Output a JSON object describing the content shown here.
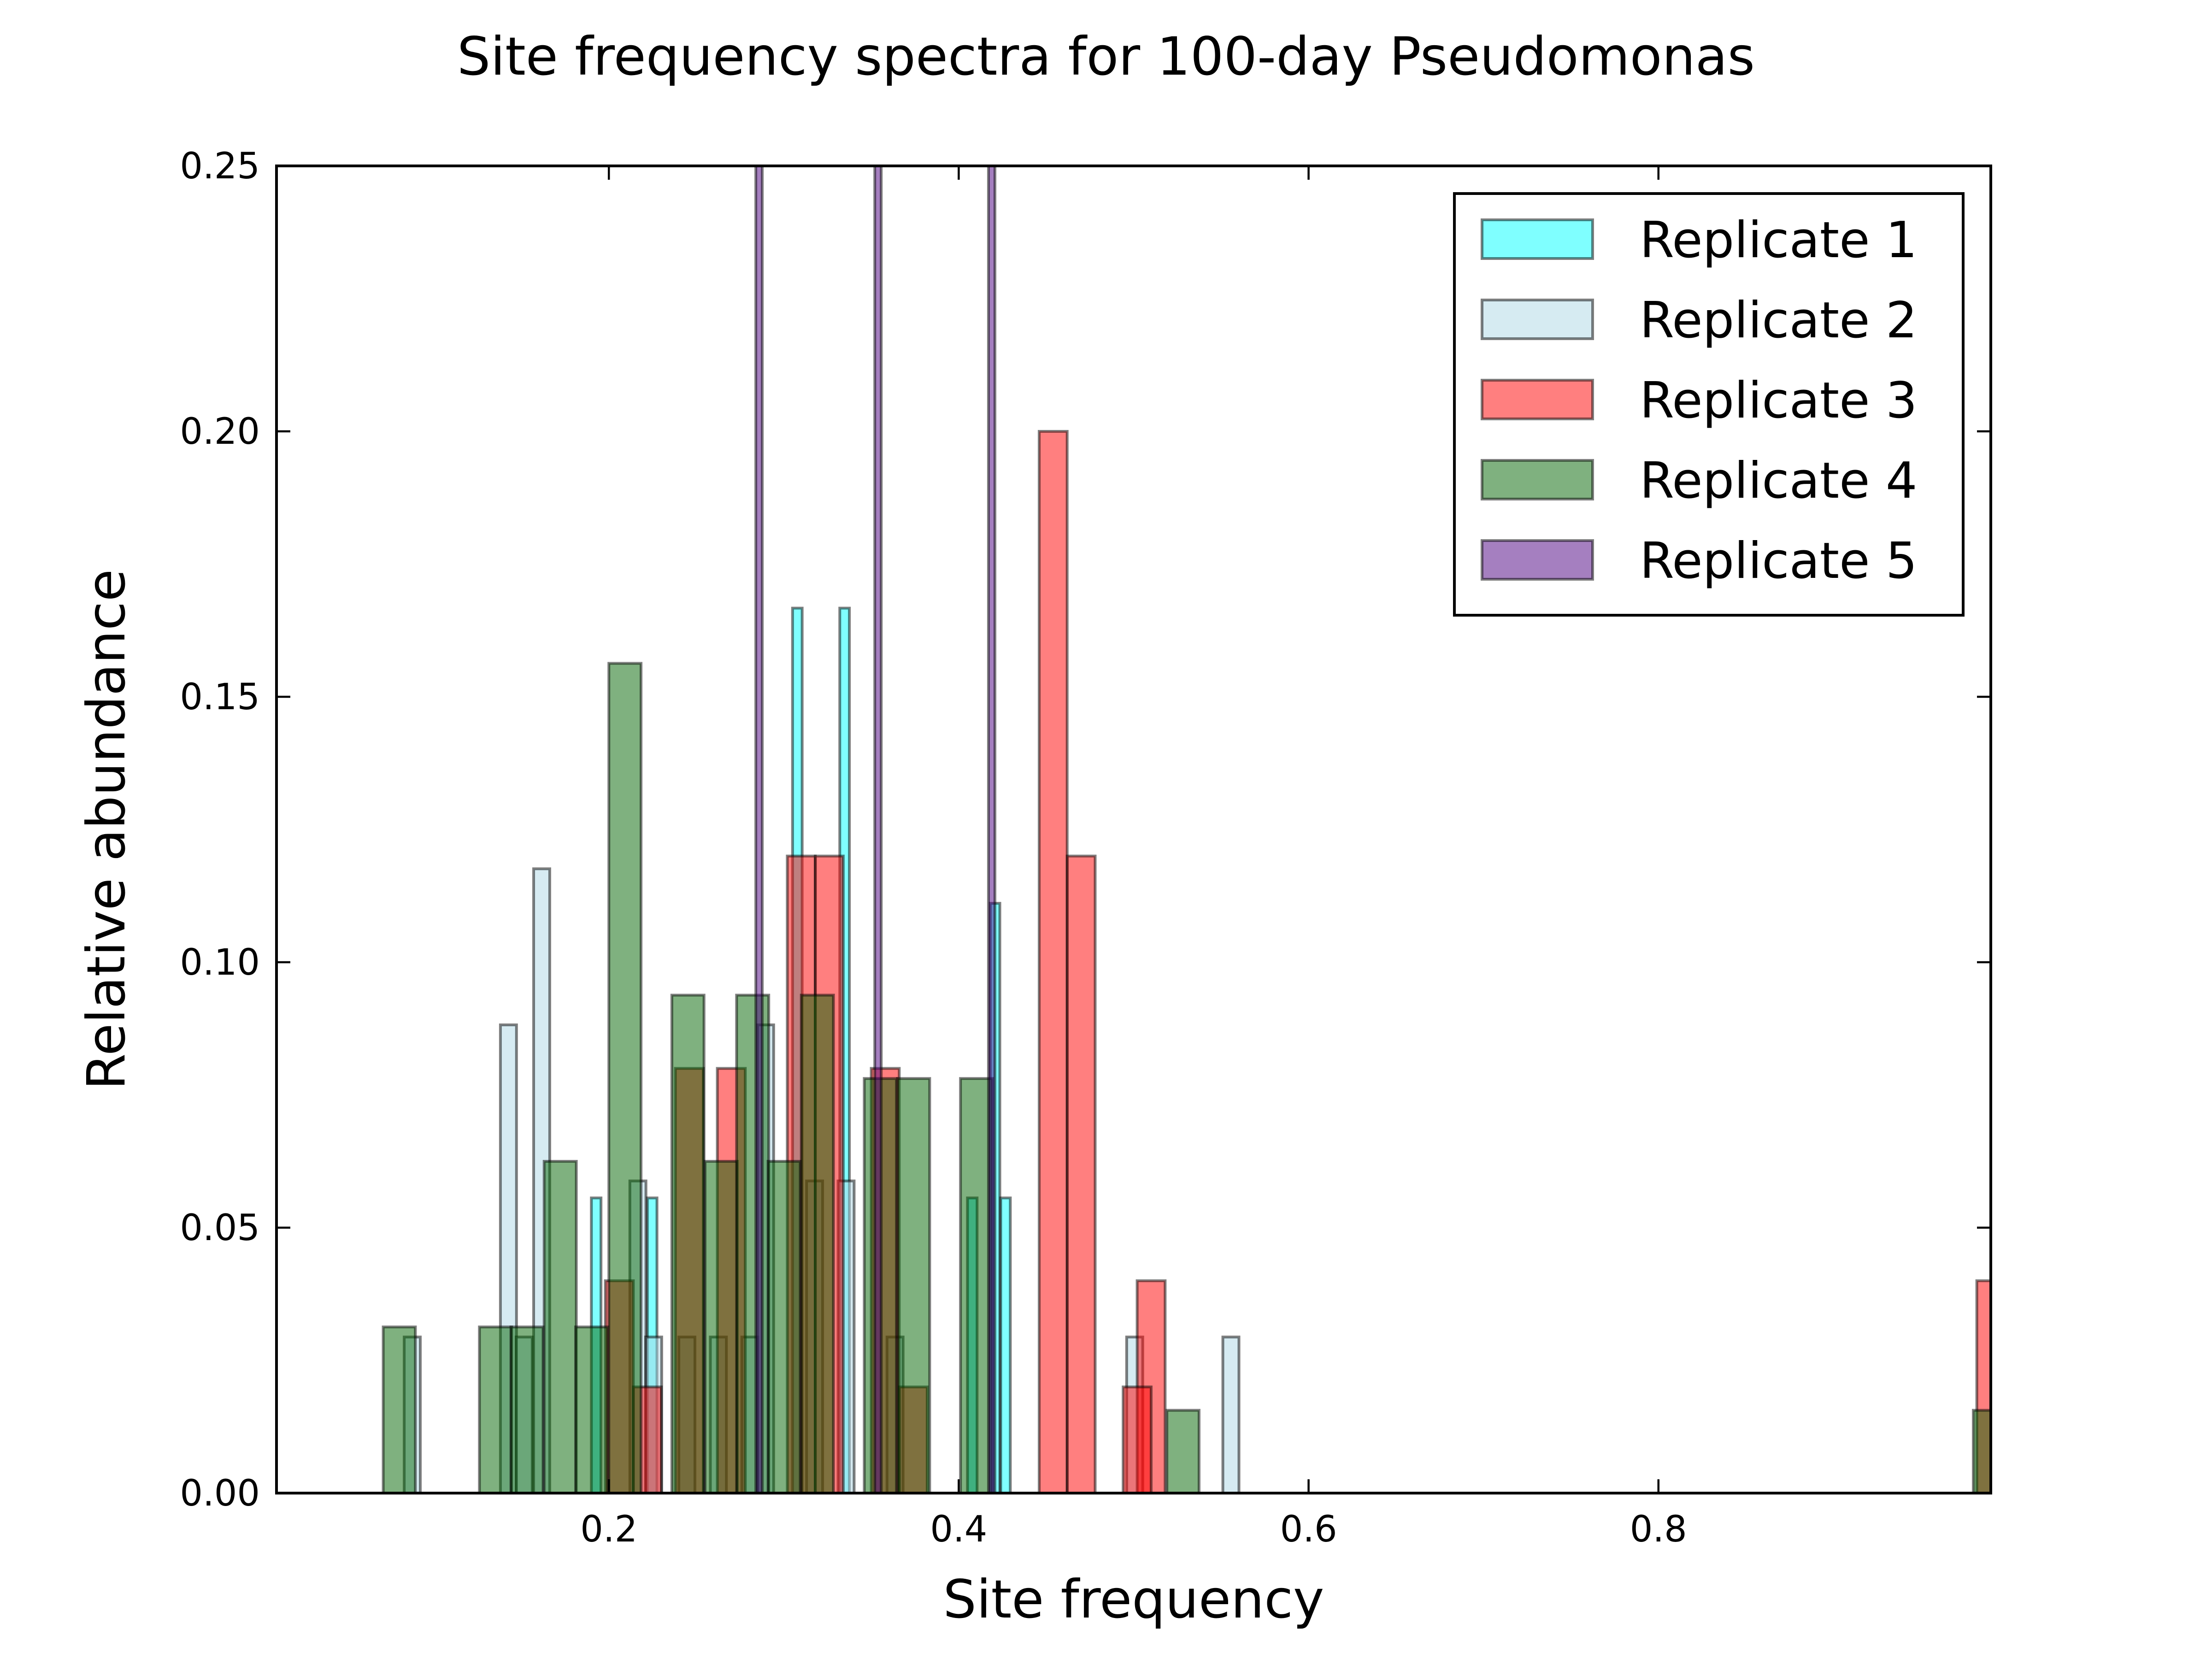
{
  "chart_data": {
    "type": "bar",
    "title": "Site frequency spectra for 100-day Pseudomonas",
    "xlabel": "Site frequency",
    "ylabel": "Relative abundance",
    "xlim": [
      0.01,
      0.99
    ],
    "ylim": [
      0,
      0.25
    ],
    "xticks": [
      0.2,
      0.4,
      0.6,
      0.8
    ],
    "yticks": [
      0.0,
      0.05,
      0.1,
      0.15,
      0.2,
      0.25
    ],
    "xtick_labels": [
      "0.2",
      "0.4",
      "0.6",
      "0.8"
    ],
    "ytick_labels": [
      "0.00",
      "0.05",
      "0.10",
      "0.15",
      "0.20",
      "0.25"
    ],
    "legend_position": "top-right",
    "grid": false,
    "series": [
      {
        "name": "Replicate 1",
        "color": "#00FFFF",
        "bin_width": 0.0055,
        "bins": [
          [
            0.19,
            0.0556
          ],
          [
            0.222,
            0.0556
          ],
          [
            0.305,
            0.1667
          ],
          [
            0.332,
            0.1667
          ],
          [
            0.405,
            0.0556
          ],
          [
            0.418,
            0.1111
          ],
          [
            0.424,
            0.0556
          ]
        ]
      },
      {
        "name": "Replicate 2",
        "color": "#ADD8E6",
        "bin_width": 0.0092,
        "bins": [
          [
            0.083,
            0.0294
          ],
          [
            0.138,
            0.0882
          ],
          [
            0.147,
            0.0294
          ],
          [
            0.157,
            0.1176
          ],
          [
            0.212,
            0.0588
          ],
          [
            0.221,
            0.0294
          ],
          [
            0.24,
            0.0294
          ],
          [
            0.258,
            0.0294
          ],
          [
            0.276,
            0.0294
          ],
          [
            0.285,
            0.0882
          ],
          [
            0.313,
            0.0588
          ],
          [
            0.331,
            0.0588
          ],
          [
            0.359,
            0.0294
          ],
          [
            0.496,
            0.0294
          ],
          [
            0.551,
            0.0294
          ]
        ]
      },
      {
        "name": "Replicate 3",
        "color": "#FF0000",
        "bin_width": 0.016,
        "bins": [
          [
            0.198,
            0.04
          ],
          [
            0.214,
            0.02
          ],
          [
            0.238,
            0.08
          ],
          [
            0.262,
            0.08
          ],
          [
            0.302,
            0.12
          ],
          [
            0.318,
            0.12
          ],
          [
            0.35,
            0.08
          ],
          [
            0.366,
            0.02
          ],
          [
            0.446,
            0.2
          ],
          [
            0.462,
            0.12
          ],
          [
            0.502,
            0.04
          ],
          [
            0.494,
            0.02
          ],
          [
            0.982,
            0.04
          ]
        ]
      },
      {
        "name": "Replicate 4",
        "color": "#006400",
        "bin_width": 0.0184,
        "bins": [
          [
            0.071,
            0.0313
          ],
          [
            0.126,
            0.0313
          ],
          [
            0.144,
            0.0313
          ],
          [
            0.163,
            0.0625
          ],
          [
            0.181,
            0.0313
          ],
          [
            0.2,
            0.1563
          ],
          [
            0.236,
            0.0938
          ],
          [
            0.255,
            0.0625
          ],
          [
            0.273,
            0.0938
          ],
          [
            0.291,
            0.0625
          ],
          [
            0.31,
            0.0938
          ],
          [
            0.346,
            0.0781
          ],
          [
            0.365,
            0.0781
          ],
          [
            0.401,
            0.0781
          ],
          [
            0.42,
            0.0
          ],
          [
            0.519,
            0.0156
          ],
          [
            0.98,
            0.0156
          ]
        ]
      },
      {
        "name": "Replicate 5",
        "color": "#4B0082",
        "bin_width": 0.0037,
        "bins": [
          [
            0.284,
            1.0
          ],
          [
            0.352,
            1.0
          ],
          [
            0.417,
            1.0
          ]
        ]
      }
    ]
  }
}
